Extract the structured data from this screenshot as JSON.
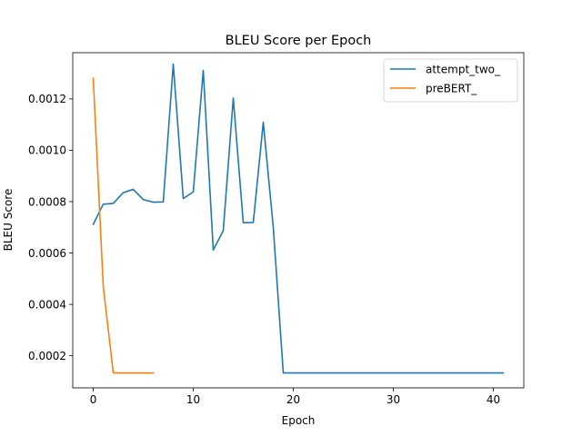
{
  "chart_data": {
    "type": "line",
    "title": "BLEU Score per Epoch",
    "xlabel": "Epoch",
    "ylabel": "BLEU Score",
    "xlim": [
      -2.05,
      43.05
    ],
    "ylim": [
      7.5e-05,
      0.00138
    ],
    "x_ticks": [
      0,
      10,
      20,
      30,
      40
    ],
    "x_tick_labels": [
      "0",
      "10",
      "20",
      "30",
      "40"
    ],
    "y_ticks": [
      0.0002,
      0.0004,
      0.0006,
      0.0008,
      0.001,
      0.0012
    ],
    "y_tick_labels": [
      "0.0002",
      "0.0004",
      "0.0006",
      "0.0008",
      "0.0010",
      "0.0012"
    ],
    "grid": false,
    "legend_position": "top-right",
    "series": [
      {
        "name": "attempt_two_",
        "color": "#1f77b4",
        "x": [
          0,
          1,
          2,
          3,
          4,
          5,
          6,
          7,
          8,
          9,
          10,
          11,
          12,
          13,
          14,
          15,
          16,
          17,
          18,
          19,
          20,
          21,
          22,
          23,
          24,
          25,
          26,
          27,
          28,
          29,
          30,
          31,
          32,
          33,
          34,
          35,
          36,
          37,
          38,
          39,
          40,
          41
        ],
        "values": [
          0.000712,
          0.00079,
          0.000793,
          0.000835,
          0.000848,
          0.000808,
          0.000798,
          0.000799,
          0.001335,
          0.000812,
          0.000838,
          0.001311,
          0.000612,
          0.000687,
          0.001203,
          0.000718,
          0.000719,
          0.001109,
          0.0007,
          0.000133,
          0.000133,
          0.000133,
          0.000133,
          0.000133,
          0.000133,
          0.000133,
          0.000133,
          0.000133,
          0.000133,
          0.000133,
          0.000133,
          0.000133,
          0.000133,
          0.000133,
          0.000133,
          0.000133,
          0.000133,
          0.000133,
          0.000133,
          0.000133,
          0.000133,
          0.000133
        ]
      },
      {
        "name": "preBERT_",
        "color": "#ff7f0e",
        "x": [
          0,
          1,
          2,
          3,
          4,
          5,
          6
        ],
        "values": [
          0.00128,
          0.00047,
          0.000133,
          0.000133,
          0.000133,
          0.000133,
          0.000133
        ]
      }
    ]
  }
}
